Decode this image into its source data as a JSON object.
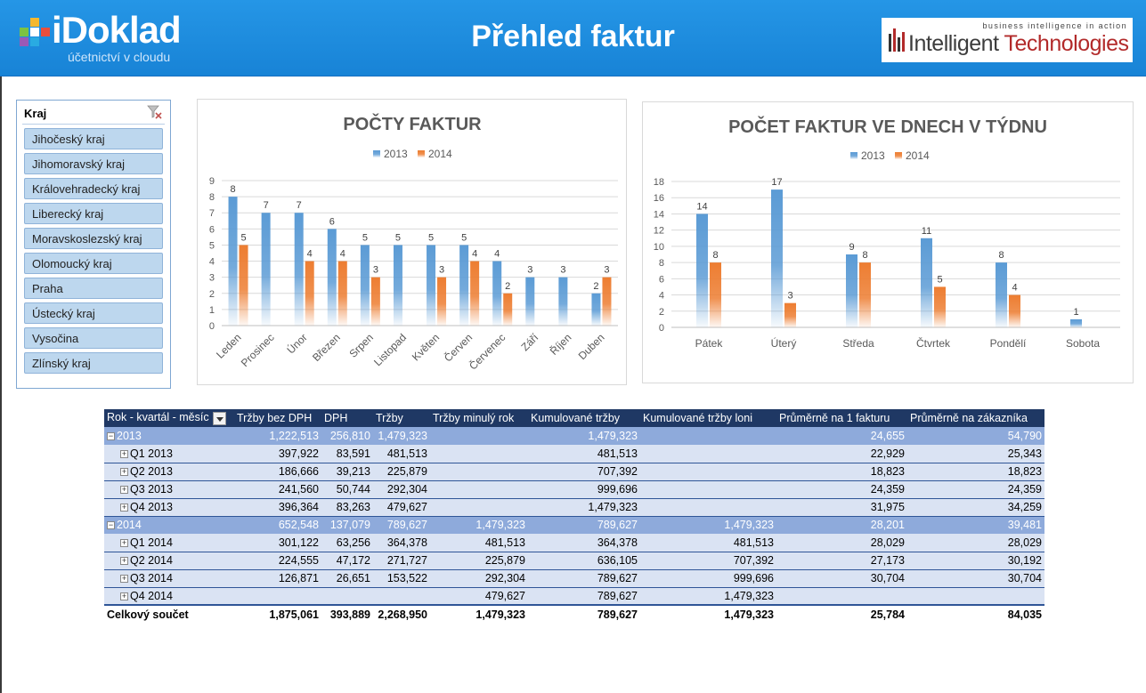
{
  "header": {
    "logo_name": "iDoklad",
    "logo_tagline": "účetnictví v cloudu",
    "title": "Přehled faktur",
    "partner_tagline": "business intelligence in action",
    "partner_name_1": "Intelligent",
    "partner_name_2": "Technologies"
  },
  "slicer": {
    "title": "Kraj",
    "items": [
      "Jihočeský kraj",
      "Jihomoravský kraj",
      "Královehradecký kraj",
      "Liberecký kraj",
      "Moravskoslezský kraj",
      "Olomoucký kraj",
      "Praha",
      "Ústecký kraj",
      "Vysočina",
      "Zlínský kraj"
    ]
  },
  "colors": {
    "blue": "#5b9bd5",
    "orange": "#ed7d31"
  },
  "chart_data": [
    {
      "type": "bar",
      "title": "POČTY FAKTUR",
      "categories": [
        "Leden",
        "Prosinec",
        "Únor",
        "Březen",
        "Srpen",
        "Listopad",
        "Květen",
        "Červen",
        "Červenec",
        "Září",
        "Říjen",
        "Duben"
      ],
      "series": [
        {
          "name": "2013",
          "values": [
            8,
            7,
            7,
            6,
            5,
            5,
            5,
            5,
            4,
            3,
            3,
            2
          ]
        },
        {
          "name": "2014",
          "values": [
            5,
            null,
            4,
            4,
            3,
            null,
            3,
            4,
            2,
            null,
            null,
            3
          ]
        }
      ],
      "ylim": [
        0,
        9
      ],
      "yticks": [
        0,
        1,
        2,
        3,
        4,
        5,
        6,
        7,
        8,
        9
      ],
      "legend": "top",
      "grid": true
    },
    {
      "type": "bar",
      "title": "POČET FAKTUR VE DNECH V TÝDNU",
      "categories": [
        "Pátek",
        "Úterý",
        "Středa",
        "Čtvrtek",
        "Pondělí",
        "Sobota"
      ],
      "series": [
        {
          "name": "2013",
          "values": [
            14,
            17,
            9,
            11,
            8,
            1
          ]
        },
        {
          "name": "2014",
          "values": [
            8,
            3,
            8,
            5,
            4,
            null
          ]
        }
      ],
      "ylim": [
        0,
        18
      ],
      "yticks": [
        0,
        2,
        4,
        6,
        8,
        10,
        12,
        14,
        16,
        18
      ],
      "legend": "top",
      "grid": true
    }
  ],
  "pivot": {
    "headers": [
      "Rok - kvartál - měsíc",
      "Tržby bez DPH",
      "DPH",
      "Tržby",
      "Tržby minulý rok",
      "Kumulované tržby",
      "Kumulované tržby loni",
      "Průměrně na 1 fakturu",
      "Průměrně na zákazníka"
    ],
    "rows": [
      {
        "kind": "year",
        "toggle": "−",
        "cells": [
          "2013",
          "1,222,513",
          "256,810",
          "1,479,323",
          "",
          "1,479,323",
          "",
          "24,655",
          "54,790"
        ]
      },
      {
        "kind": "q",
        "toggle": "+",
        "cells": [
          "Q1 2013",
          "397,922",
          "83,591",
          "481,513",
          "",
          "481,513",
          "",
          "22,929",
          "25,343"
        ]
      },
      {
        "kind": "q",
        "toggle": "+",
        "cells": [
          "Q2 2013",
          "186,666",
          "39,213",
          "225,879",
          "",
          "707,392",
          "",
          "18,823",
          "18,823"
        ]
      },
      {
        "kind": "q",
        "toggle": "+",
        "cells": [
          "Q3 2013",
          "241,560",
          "50,744",
          "292,304",
          "",
          "999,696",
          "",
          "24,359",
          "24,359"
        ]
      },
      {
        "kind": "q",
        "toggle": "+",
        "cells": [
          "Q4 2013",
          "396,364",
          "83,263",
          "479,627",
          "",
          "1,479,323",
          "",
          "31,975",
          "34,259"
        ]
      },
      {
        "kind": "year",
        "toggle": "−",
        "cells": [
          "2014",
          "652,548",
          "137,079",
          "789,627",
          "1,479,323",
          "789,627",
          "1,479,323",
          "28,201",
          "39,481"
        ]
      },
      {
        "kind": "q",
        "toggle": "+",
        "cells": [
          "Q1 2014",
          "301,122",
          "63,256",
          "364,378",
          "481,513",
          "364,378",
          "481,513",
          "28,029",
          "28,029"
        ]
      },
      {
        "kind": "q",
        "toggle": "+",
        "cells": [
          "Q2 2014",
          "224,555",
          "47,172",
          "271,727",
          "225,879",
          "636,105",
          "707,392",
          "27,173",
          "30,192"
        ]
      },
      {
        "kind": "q",
        "toggle": "+",
        "cells": [
          "Q3 2014",
          "126,871",
          "26,651",
          "153,522",
          "292,304",
          "789,627",
          "999,696",
          "30,704",
          "30,704"
        ]
      },
      {
        "kind": "q",
        "toggle": "+",
        "cells": [
          "Q4 2014",
          "",
          "",
          "",
          "479,627",
          "789,627",
          "1,479,323",
          "",
          ""
        ]
      },
      {
        "kind": "total",
        "toggle": "",
        "cells": [
          "Celkový součet",
          "1,875,061",
          "393,889",
          "2,268,950",
          "1,479,323",
          "789,627",
          "1,479,323",
          "25,784",
          "84,035"
        ]
      }
    ]
  }
}
